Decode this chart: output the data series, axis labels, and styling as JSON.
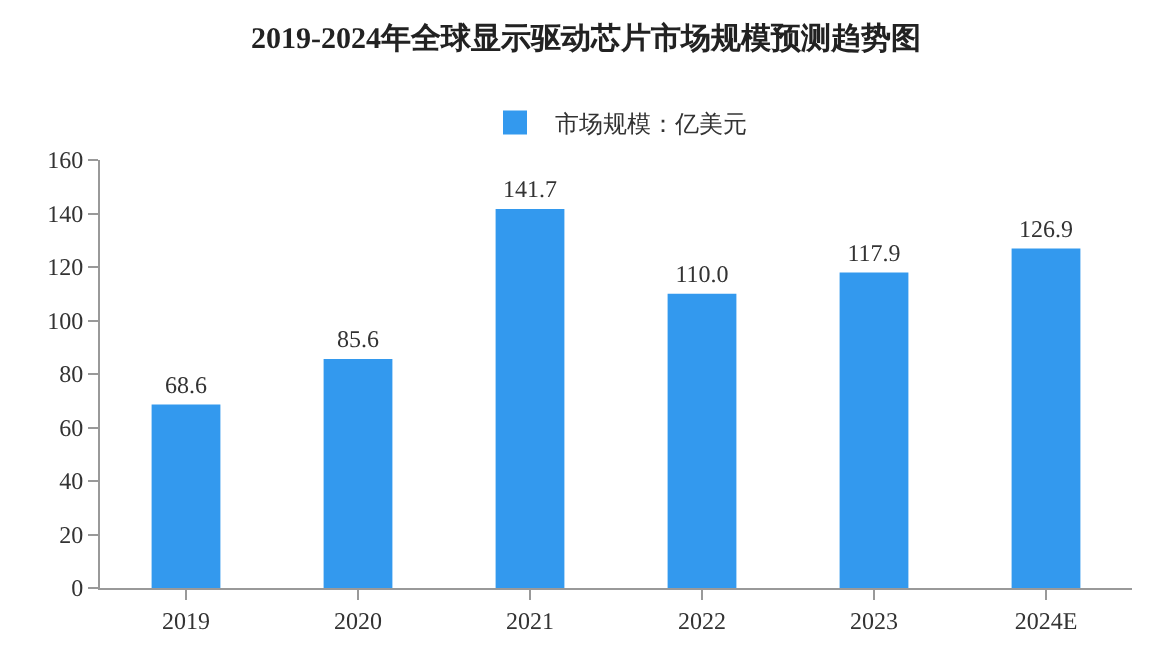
{
  "chart_data": {
    "type": "bar",
    "title": "2019-2024年全球显示驱动芯片市场规模预测趋势图",
    "categories": [
      "2019",
      "2020",
      "2021",
      "2022",
      "2023",
      "2024E"
    ],
    "series": [
      {
        "name": "市场规模：亿美元",
        "color": "#3399ee",
        "values": [
          68.6,
          85.6,
          141.7,
          110.0,
          117.9,
          126.9
        ],
        "value_labels": [
          "68.6",
          "85.6",
          "141.7",
          "110.0",
          "117.9",
          "126.9"
        ]
      }
    ],
    "ylim": [
      0,
      160
    ],
    "yticks": [
      0,
      20,
      40,
      60,
      80,
      100,
      120,
      140,
      160
    ],
    "grid": false,
    "legend": "top"
  }
}
